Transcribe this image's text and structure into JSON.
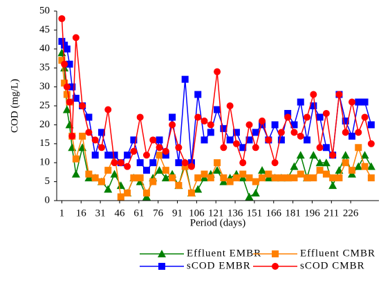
{
  "chart_data": {
    "type": "line",
    "y_label": "COD  (mg/L)",
    "x_label": "Period (days)",
    "x": [
      1,
      3,
      5,
      7,
      9,
      12,
      17,
      22,
      27,
      32,
      37,
      42,
      47,
      52,
      57,
      62,
      67,
      72,
      77,
      82,
      87,
      92,
      97,
      102,
      107,
      112,
      117,
      122,
      127,
      132,
      137,
      142,
      147,
      152,
      157,
      162,
      167,
      172,
      177,
      182,
      187,
      192,
      197,
      202,
      207,
      212,
      217,
      222,
      227,
      232,
      237,
      242
    ],
    "series": [
      {
        "name": "Effluent EMBR",
        "color": "#008000",
        "marker": "triangle",
        "values": [
          39,
          35,
          24,
          20,
          14,
          7,
          14,
          6,
          6,
          5,
          3,
          7,
          4,
          2,
          6,
          5,
          1,
          6,
          8,
          6,
          7,
          4,
          10,
          2,
          3,
          6,
          7,
          8,
          5,
          6,
          7,
          6,
          1,
          2,
          8,
          6,
          6,
          6,
          6,
          9,
          12,
          6,
          12,
          10,
          10,
          4,
          8,
          12,
          7,
          9,
          12,
          9
        ]
      },
      {
        "name": "Effluent CMBR",
        "color": "#ff8000",
        "marker": "square",
        "values": [
          37,
          31,
          28,
          26,
          17,
          11,
          17,
          7,
          6,
          5,
          8,
          12,
          1,
          2,
          6,
          6,
          2,
          5,
          12,
          8,
          6,
          4,
          9,
          2,
          6,
          7,
          6,
          10,
          6,
          5,
          6,
          7,
          6,
          5,
          6,
          7,
          6,
          6,
          6,
          6,
          7,
          6,
          6,
          8,
          7,
          6,
          6,
          10,
          8,
          14,
          9,
          6
        ]
      },
      {
        "name": "sCOD EMBR",
        "color": "#0000ff",
        "marker": "square",
        "values": [
          42,
          41,
          40,
          36,
          30,
          27,
          25,
          22,
          12,
          18,
          12,
          12,
          10,
          12,
          16,
          10,
          8,
          10,
          16,
          12,
          22,
          10,
          32,
          10,
          28,
          16,
          18,
          24,
          19,
          16,
          18,
          14,
          16,
          18,
          20,
          16,
          20,
          16,
          23,
          20,
          26,
          16,
          25,
          22,
          14,
          12,
          28,
          21,
          17,
          26,
          26,
          20
        ]
      },
      {
        "name": "sCOD CMBR",
        "color": "#ff0000",
        "marker": "circle",
        "values": [
          48,
          36,
          30,
          26,
          17,
          43,
          25,
          18,
          16,
          14,
          24,
          10,
          10,
          9,
          13,
          22,
          12,
          16,
          14,
          13,
          20,
          14,
          10,
          9,
          22,
          21,
          20,
          34,
          14,
          25,
          15,
          10,
          20,
          14,
          21,
          16,
          10,
          18,
          22,
          18,
          17,
          22,
          28,
          14,
          23,
          12,
          28,
          18,
          26,
          18,
          22,
          15
        ]
      }
    ],
    "xlim": [
      -3,
      248
    ],
    "xticks": [
      1,
      16,
      31,
      46,
      61,
      76,
      91,
      106,
      121,
      136,
      151,
      166,
      181,
      196,
      211,
      226
    ],
    "ylim": [
      0,
      50
    ],
    "yticks": [
      0,
      5,
      10,
      15,
      20,
      25,
      30,
      35,
      40,
      45,
      50
    ]
  }
}
